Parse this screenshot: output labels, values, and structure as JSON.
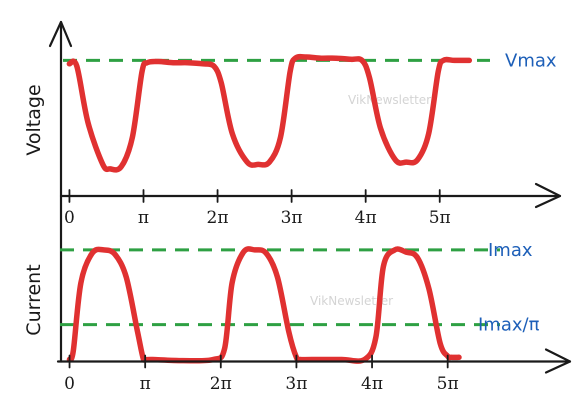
{
  "watermark": "VikNewsletter",
  "colors": {
    "signal": "#e03131",
    "reference": "#2ea043",
    "reference_label": "#1d5fb8",
    "axis": "#1a1a1a"
  },
  "chart_data": [
    {
      "type": "line",
      "title": "",
      "ylabel": "Voltage",
      "xlabel": "",
      "xunit": "radians",
      "xlim": [
        -0.06,
        6.3
      ],
      "ylim": [
        -0.2,
        1.34
      ],
      "x_ticks": [
        {
          "value": 0,
          "label": "0"
        },
        {
          "value": 1,
          "label": "π"
        },
        {
          "value": 2,
          "label": "2π"
        },
        {
          "value": 3,
          "label": "3π"
        },
        {
          "value": 4,
          "label": "4π"
        },
        {
          "value": 5,
          "label": "5π"
        }
      ],
      "reference_lines": [
        {
          "value": 1.0,
          "label": "Vmax",
          "style": "dashed"
        }
      ],
      "series": [
        {
          "x": [
            0,
            0.1,
            0.25,
            0.45,
            0.55,
            0.7,
            0.85,
            0.98,
            1.05,
            1.2,
            1.4,
            1.6,
            1.8,
            1.95,
            2.05,
            2.2,
            2.4,
            2.55,
            2.7,
            2.85,
            2.98,
            3.05,
            3.2,
            3.4,
            3.6,
            3.8,
            3.95,
            4.05,
            4.2,
            4.4,
            4.55,
            4.7,
            4.85,
            4.98,
            5.05,
            5.2,
            5.4
          ],
          "values": [
            0.97,
            0.95,
            0.45,
            0.08,
            0.04,
            0.06,
            0.32,
            0.9,
            0.98,
            0.99,
            0.98,
            0.98,
            0.97,
            0.95,
            0.8,
            0.35,
            0.1,
            0.08,
            0.1,
            0.32,
            0.9,
            1.02,
            1.03,
            1.02,
            1.02,
            1.01,
            1.0,
            0.85,
            0.4,
            0.12,
            0.1,
            0.12,
            0.35,
            0.9,
            1.0,
            1.0,
            1.0
          ]
        }
      ]
    },
    {
      "type": "line",
      "title": "",
      "ylabel": "Current",
      "xlabel": "",
      "xunit": "radians",
      "xlim": [
        -0.06,
        6.3
      ],
      "ylim": [
        -0.05,
        1.2
      ],
      "x_ticks": [
        {
          "value": 0,
          "label": "0"
        },
        {
          "value": 1,
          "label": "π"
        },
        {
          "value": 2,
          "label": "2π"
        },
        {
          "value": 3,
          "label": "3π"
        },
        {
          "value": 4,
          "label": "4π"
        },
        {
          "value": 5,
          "label": "5π"
        }
      ],
      "reference_lines": [
        {
          "value": 1.0,
          "label": "Imax",
          "style": "dashed"
        },
        {
          "value": 0.318,
          "label": "Imax/π",
          "style": "dashed"
        }
      ],
      "series": [
        {
          "x": [
            0,
            0.05,
            0.15,
            0.3,
            0.45,
            0.6,
            0.75,
            0.9,
            0.97,
            1.0,
            1.1,
            1.5,
            1.9,
            2.05,
            2.15,
            2.3,
            2.45,
            2.6,
            2.75,
            2.9,
            3.0,
            3.05,
            3.2,
            3.6,
            3.9,
            4.05,
            4.15,
            4.3,
            4.45,
            4.6,
            4.75,
            4.9,
            5.0,
            5.05,
            5.15
          ],
          "values": [
            0.0,
            0.08,
            0.7,
            0.97,
            1.0,
            0.96,
            0.75,
            0.25,
            0.02,
            0.0,
            0.0,
            -0.01,
            0.0,
            0.1,
            0.7,
            0.98,
            1.0,
            0.97,
            0.75,
            0.25,
            0.02,
            0.0,
            0.0,
            0.0,
            0.0,
            0.2,
            0.85,
            1.0,
            0.98,
            0.93,
            0.65,
            0.15,
            0.03,
            0.02,
            0.02
          ]
        }
      ]
    }
  ]
}
